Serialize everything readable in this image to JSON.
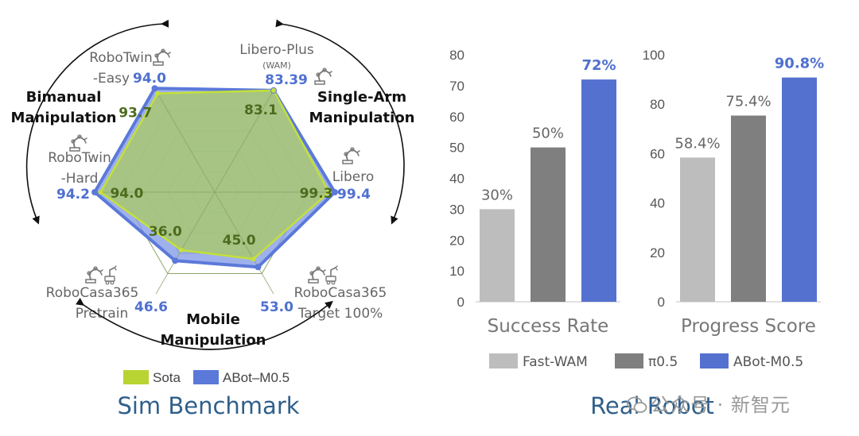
{
  "chart_data": [
    {
      "type": "radar",
      "title": "Sim Benchmark",
      "series": [
        {
          "name": "Sota",
          "color": "#b8d432"
        },
        {
          "name": "ABot–M0.5",
          "color": "#5b79d9"
        }
      ],
      "axes": [
        {
          "label_lines": [
            "RoboTwin",
            "-Easy"
          ],
          "abot": 94.0,
          "sota": 93.7,
          "abot_label": "94.0",
          "sota_label": "93.7"
        },
        {
          "label_lines": [
            "Libero-Plus",
            "(WAM)"
          ],
          "abot": 83.39,
          "sota": 83.1,
          "abot_label": "83.39",
          "sota_label": "83.1"
        },
        {
          "label_lines": [
            "Libero"
          ],
          "abot": 99.4,
          "sota": 99.3,
          "abot_label": "99.4",
          "sota_label": "99.3"
        },
        {
          "label_lines": [
            "RoboCasa365",
            "Target 100%"
          ],
          "abot": 53.0,
          "sota": 45.0,
          "abot_label": "53.0",
          "sota_label": "45.0"
        },
        {
          "label_lines": [
            "RoboCasa365",
            "Pretrain"
          ],
          "abot": 46.6,
          "sota": 36.0,
          "abot_label": "46.6",
          "sota_label": "36.0"
        },
        {
          "label_lines": [
            "RoboTwin",
            "-Hard"
          ],
          "abot": 94.2,
          "sota": 94.0,
          "abot_label": "94.2",
          "sota_label": "94.0"
        }
      ],
      "groups": [
        {
          "lines": [
            "Bimanual",
            "Manipulation"
          ]
        },
        {
          "lines": [
            "Single-Arm",
            "Manipulation"
          ]
        },
        {
          "lines": [
            "Mobile",
            "Manipulation"
          ]
        }
      ]
    },
    {
      "type": "bar",
      "title": "Success Rate",
      "categories": [
        "Fast-WAM",
        "π0.5",
        "ABot-M0.5"
      ],
      "values": [
        30,
        50,
        72
      ],
      "value_labels": [
        "30%",
        "50%",
        "72%"
      ],
      "ylim": [
        0,
        80
      ],
      "yticks": [
        0,
        10,
        20,
        30,
        40,
        50,
        60,
        70,
        80
      ]
    },
    {
      "type": "bar",
      "title": "Progress Score",
      "categories": [
        "Fast-WAM",
        "π0.5",
        "ABot-M0.5"
      ],
      "values": [
        58.4,
        75.4,
        90.8
      ],
      "value_labels": [
        "58.4%",
        "75.4%",
        "90.8%"
      ],
      "ylim": [
        0,
        100
      ],
      "yticks": [
        0,
        20,
        40,
        60,
        80,
        100
      ]
    }
  ],
  "legend_right": [
    {
      "name": "Fast-WAM",
      "color": "#bdbdbd"
    },
    {
      "name": "π0.5",
      "color": "#7f7f7f"
    },
    {
      "name": "ABot-M0.5",
      "color": "#5571cf"
    }
  ],
  "section_titles": {
    "left": "Sim Benchmark",
    "right": "Real Robot"
  },
  "colors": {
    "title": "#2f5f8a",
    "abot_text": "#4f70d0",
    "sota_text": "#4d6b1e",
    "axis_text": "#666666",
    "tick_text": "#555555"
  },
  "icons": [
    "robot-arm-icon",
    "mobile-robot-icon"
  ],
  "watermark": "公众号 · 新智元"
}
